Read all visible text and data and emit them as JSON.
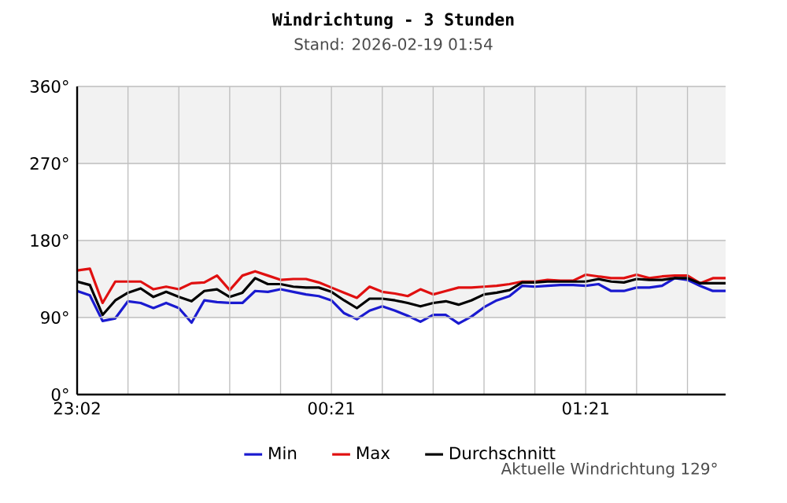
{
  "chart_data": {
    "type": "line",
    "title": "Windrichtung - 3 Stunden",
    "subtitle": "Stand: 2026-02-19 01:54",
    "categories": [
      "23:02",
      null,
      null,
      null,
      null,
      null,
      null,
      null,
      null,
      null,
      null,
      null,
      null,
      null,
      null,
      null,
      null,
      null,
      null,
      null,
      "00:21",
      null,
      null,
      null,
      null,
      null,
      null,
      null,
      null,
      null,
      null,
      null,
      null,
      null,
      null,
      null,
      null,
      null,
      null,
      null,
      "01:21",
      null,
      null,
      null,
      null,
      null,
      null,
      null,
      null,
      null,
      null,
      null
    ],
    "series": [
      {
        "name": "Min",
        "color": "#1a1ad0",
        "values": [
          121,
          116,
          86,
          89,
          109,
          107,
          101,
          107,
          101,
          84,
          110,
          108,
          107,
          107,
          121,
          120,
          123,
          120,
          117,
          115,
          110,
          95,
          88,
          98,
          103,
          98,
          92,
          85,
          93,
          93,
          83,
          91,
          102,
          110,
          115,
          127,
          126,
          127,
          128,
          128,
          127,
          129,
          121,
          121,
          125,
          125,
          127,
          136,
          134,
          127,
          121,
          121
        ]
      },
      {
        "name": "Max",
        "color": "#e01010",
        "values": [
          145,
          147,
          107,
          132,
          132,
          132,
          123,
          126,
          123,
          130,
          131,
          139,
          122,
          139,
          144,
          139,
          134,
          135,
          135,
          131,
          125,
          119,
          113,
          126,
          120,
          118,
          115,
          123,
          117,
          121,
          125,
          125,
          126,
          127,
          129,
          132,
          132,
          134,
          133,
          133,
          140,
          138,
          136,
          136,
          140,
          136,
          138,
          139,
          139,
          130,
          136,
          136
        ]
      },
      {
        "name": "Durchschnitt",
        "color": "#000000",
        "values": [
          132,
          128,
          93,
          110,
          119,
          124,
          114,
          120,
          114,
          109,
          121,
          123,
          114,
          119,
          136,
          129,
          129,
          126,
          125,
          125,
          120,
          110,
          101,
          112,
          112,
          110,
          107,
          103,
          107,
          109,
          105,
          110,
          117,
          119,
          122,
          131,
          131,
          132,
          132,
          132,
          132,
          135,
          132,
          131,
          135,
          134,
          134,
          136,
          136,
          130,
          130,
          130
        ]
      }
    ],
    "ylim": [
      0,
      360
    ],
    "yticks": [
      {
        "value": 0,
        "label": "0°"
      },
      {
        "value": 90,
        "label": "90°"
      },
      {
        "value": 180,
        "label": "180°"
      },
      {
        "value": 270,
        "label": "270°"
      },
      {
        "value": 360,
        "label": "360°"
      }
    ],
    "bands": [
      {
        "axis": "y",
        "from": 90,
        "to": 180,
        "color": "#f2f2f2"
      },
      {
        "axis": "y",
        "from": 270,
        "to": 360,
        "color": "#f2f2f2"
      }
    ],
    "grid": true,
    "legend": "bottom",
    "marker": "none",
    "line_style": "solid",
    "annotations": [
      "Aktuelle Windrichtung 129°"
    ]
  }
}
